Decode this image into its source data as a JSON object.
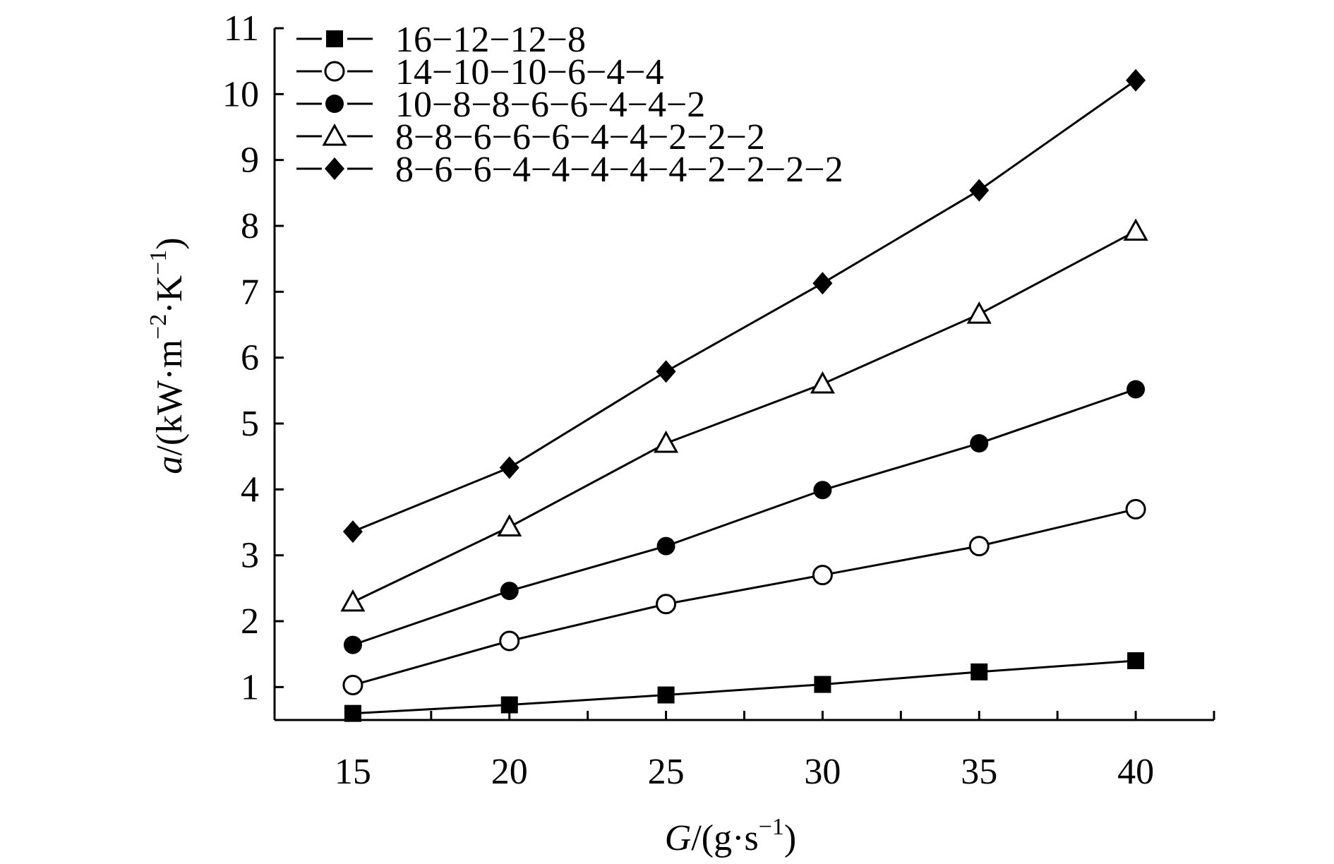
{
  "chart_data": {
    "type": "line",
    "x": [
      15,
      20,
      25,
      30,
      35,
      40
    ],
    "xlim": [
      12.5,
      42.5
    ],
    "ylim": [
      0.5,
      11
    ],
    "x_ticks": [
      "15",
      "20",
      "25",
      "30",
      "35",
      "40"
    ],
    "y_ticks": [
      "1",
      "2",
      "3",
      "4",
      "5",
      "6",
      "7",
      "8",
      "9",
      "10",
      "11"
    ],
    "y_tick_values": [
      1,
      2,
      3,
      4,
      5,
      6,
      7,
      8,
      9,
      10,
      11
    ],
    "xlabel": {
      "var": "G",
      "rest": "/(g·s",
      "sup": "−1",
      "close": ")"
    },
    "ylabel": {
      "var": "a",
      "rest": "/(kW·m",
      "sup1": "−2",
      "mid": "·K",
      "sup2": "−1",
      "close": ")"
    },
    "grid": false,
    "legend_position": "top-left",
    "series": [
      {
        "name": "16−12−12−8",
        "marker": "filled-square",
        "values": [
          0.6,
          0.73,
          0.88,
          1.04,
          1.23,
          1.4
        ]
      },
      {
        "name": "14−10−10−6−4−4",
        "marker": "open-circle",
        "values": [
          1.03,
          1.7,
          2.26,
          2.7,
          3.14,
          3.7
        ]
      },
      {
        "name": "10−8−8−6−6−4−4−2",
        "marker": "filled-circle",
        "values": [
          1.64,
          2.46,
          3.14,
          3.99,
          4.7,
          5.52
        ]
      },
      {
        "name": "8−8−6−6−6−4−4−2−2−2",
        "marker": "open-triangle",
        "values": [
          2.29,
          3.43,
          4.7,
          5.6,
          6.66,
          7.92
        ]
      },
      {
        "name": "8−6−6−4−4−4−4−4−2−2−2−2",
        "marker": "filled-diamond",
        "values": [
          3.36,
          4.33,
          5.79,
          7.13,
          8.54,
          10.21
        ]
      }
    ]
  }
}
